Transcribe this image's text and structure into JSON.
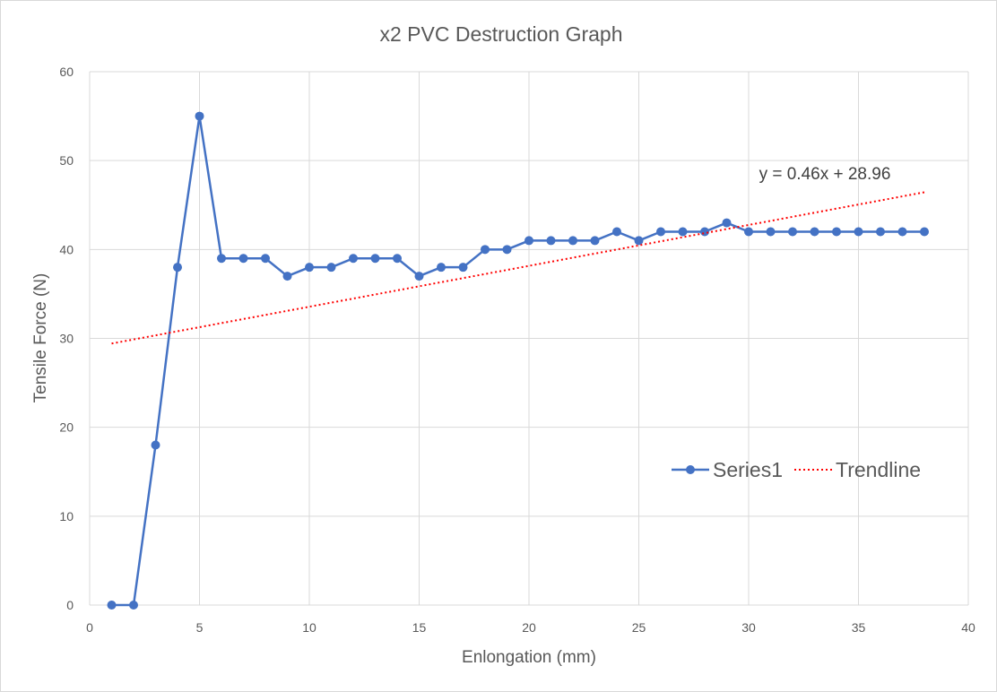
{
  "chart_data": {
    "type": "scatter",
    "title": "x2 PVC Destruction Graph",
    "xlabel": "Enlongation (mm)",
    "ylabel": "Tensile Force (N)",
    "xlim": [
      0,
      40
    ],
    "ylim": [
      0,
      60
    ],
    "x_ticks": [
      "0",
      "5",
      "10",
      "15",
      "20",
      "25",
      "30",
      "35",
      "40"
    ],
    "y_ticks": [
      "0",
      "10",
      "20",
      "30",
      "40",
      "50",
      "60"
    ],
    "grid": true,
    "legend_position": "right",
    "series": [
      {
        "name": "Series1",
        "color": "#4472C4",
        "style": "line-with-markers",
        "x": [
          1,
          2,
          3,
          4,
          5,
          6,
          7,
          8,
          9,
          10,
          11,
          12,
          13,
          14,
          15,
          16,
          17,
          18,
          19,
          20,
          21,
          22,
          23,
          24,
          25,
          26,
          27,
          28,
          29,
          30,
          31,
          32,
          33,
          34,
          35,
          36,
          37,
          38
        ],
        "y": [
          0,
          0,
          18,
          38,
          55,
          39,
          39,
          39,
          37,
          38,
          38,
          39,
          39,
          39,
          37,
          38,
          38,
          40,
          40,
          41,
          41,
          41,
          41,
          42,
          41,
          42,
          42,
          42,
          43,
          42,
          42,
          42,
          42,
          42,
          42,
          42,
          42,
          42
        ]
      },
      {
        "name": "Trendline",
        "color": "#FF0000",
        "style": "dotted-linear",
        "slope": 0.46,
        "intercept": 28.96,
        "x_range": [
          1,
          38
        ],
        "equation": "y = 0.46x + 28.96"
      }
    ]
  }
}
